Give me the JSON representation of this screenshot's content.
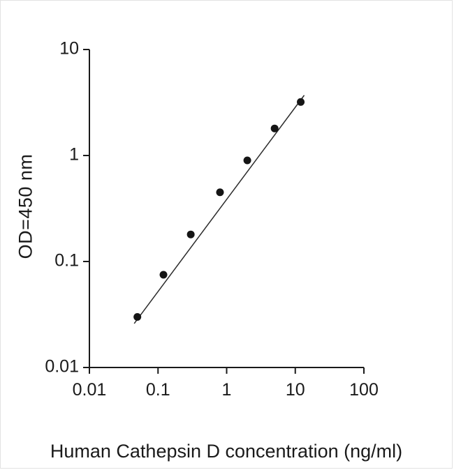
{
  "figure": {
    "background": "#ffffff",
    "border_color": "#e2e2e2",
    "xlabel": "Human Cathepsin D concentration (ng/ml)",
    "ylabel": "OD=450 nm"
  },
  "chart_data": {
    "type": "scatter",
    "title": "",
    "xlabel": "Human Cathepsin D concentration (ng/ml)",
    "ylabel": "OD=450 nm",
    "x_scale": "log",
    "y_scale": "log",
    "xlim": [
      0.01,
      100
    ],
    "ylim": [
      0.01,
      10
    ],
    "x_ticks": [
      0.01,
      0.1,
      1,
      10,
      100
    ],
    "x_tick_labels": [
      "0.01",
      "0.1",
      "1",
      "10",
      "100"
    ],
    "y_ticks": [
      0.01,
      0.1,
      1,
      10
    ],
    "y_tick_labels": [
      "0.01",
      "0.1",
      "1",
      "10"
    ],
    "grid": false,
    "legend": "none",
    "points": {
      "x": [
        0.05,
        0.12,
        0.3,
        0.8,
        2,
        5,
        12
      ],
      "y": [
        0.03,
        0.075,
        0.18,
        0.45,
        0.9,
        1.8,
        3.2
      ]
    },
    "fit_line": {
      "x1": 0.045,
      "y1": 0.026,
      "x2": 13.5,
      "y2": 3.7
    },
    "marker": {
      "shape": "circle",
      "color": "#151515",
      "radius": 5.5
    },
    "line_color": "#2b2b2b",
    "axis_color": "#1a1a1a"
  }
}
